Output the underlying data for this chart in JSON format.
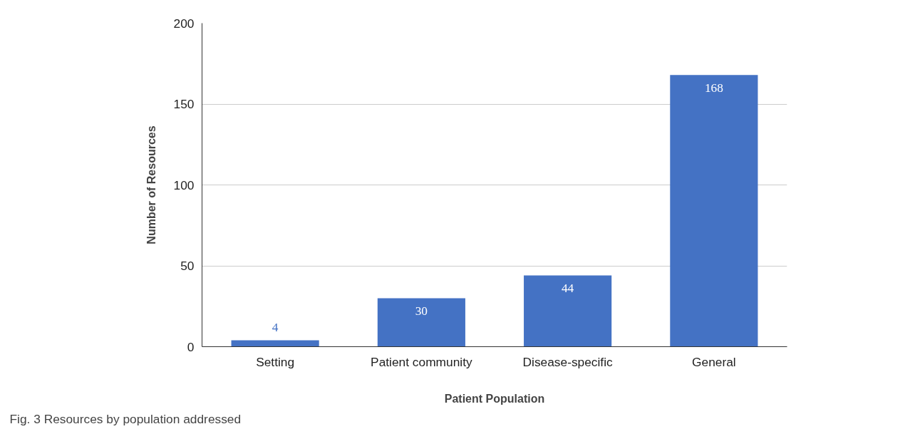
{
  "chart_data": {
    "type": "bar",
    "xlabel": "Patient Population",
    "ylabel": "Number of Resources",
    "categories": [
      "Setting",
      "Patient community",
      "Disease-specific",
      "General"
    ],
    "values": [
      4,
      30,
      44,
      168
    ],
    "color": "#4472c4",
    "ylim": [
      0,
      200
    ],
    "yticks": [
      0,
      50,
      100,
      150,
      200
    ],
    "grid": "y",
    "data_labels": true,
    "annotations": [
      "Fig. 3  Resources by population addressed"
    ]
  }
}
